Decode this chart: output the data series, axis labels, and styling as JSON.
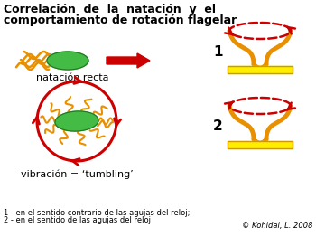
{
  "title_line1": "Correlación  de  la  natación  y  el",
  "title_line2": "comportamiento de rotación flagelar",
  "label_straight": "natación recta",
  "label_tumbling": "vibración = ‘tumbling’",
  "footnote1": "1 - en el sentido contrario de las agujas del reloj;",
  "footnote2": "2 - en el sentido de las agujas del reloj",
  "copyright": "© Kohidai, L. 2008",
  "label_1": "1",
  "label_2": "2",
  "bg_color": "#ffffff",
  "orange": "#E89000",
  "red": "#CC0000",
  "green_body": "#44BB44",
  "green_dark": "#227722",
  "yellow": "#FFEE00",
  "yellow_border": "#CC9900",
  "title_fontsize": 9.0,
  "label_fontsize": 8.0,
  "footnote_fontsize": 6.0,
  "number_fontsize": 11
}
